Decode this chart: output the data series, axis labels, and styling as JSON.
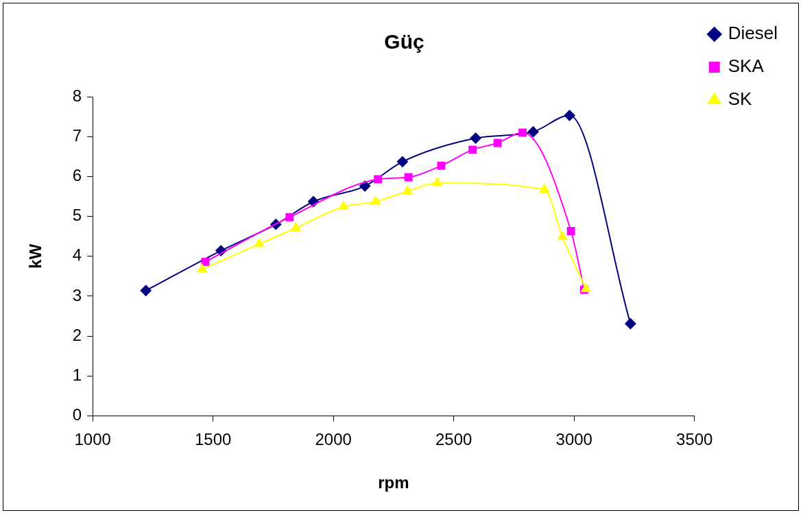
{
  "chart_data": {
    "type": "line",
    "title": "Güç",
    "xlabel": "rpm",
    "ylabel": "kW",
    "xlim": [
      1000,
      3500
    ],
    "xticks": [
      1000,
      1500,
      2000,
      2500,
      3000,
      3500
    ],
    "ylim": [
      0,
      8
    ],
    "yticks": [
      0,
      1,
      2,
      3,
      4,
      5,
      6,
      7,
      8
    ],
    "grid": false,
    "legend": "right",
    "series": [
      {
        "name": "Diesel",
        "color": "#000080",
        "marker": "diamond",
        "x": [
          1221,
          1533,
          1761,
          1917,
          2131,
          2287,
          2591,
          2830,
          2981,
          3234
        ],
        "values": [
          3.14,
          4.14,
          4.8,
          5.37,
          5.76,
          6.37,
          6.96,
          7.12,
          7.53,
          2.31
        ]
      },
      {
        "name": "SKA",
        "color": "#ff00ff",
        "marker": "square",
        "x": [
          1468,
          1818,
          2185,
          2312,
          2448,
          2578,
          2682,
          2786,
          2987,
          3042
        ],
        "values": [
          3.86,
          4.98,
          5.93,
          5.98,
          6.27,
          6.67,
          6.84,
          7.1,
          4.63,
          3.16
        ]
      },
      {
        "name": "SK",
        "color": "#ffff00",
        "marker": "triangle",
        "x": [
          1455,
          1692,
          1844,
          2042,
          2175,
          2308,
          2432,
          2877,
          2951,
          3049
        ],
        "values": [
          3.67,
          4.31,
          4.71,
          5.24,
          5.37,
          5.63,
          5.84,
          5.67,
          4.49,
          3.18
        ]
      }
    ]
  }
}
